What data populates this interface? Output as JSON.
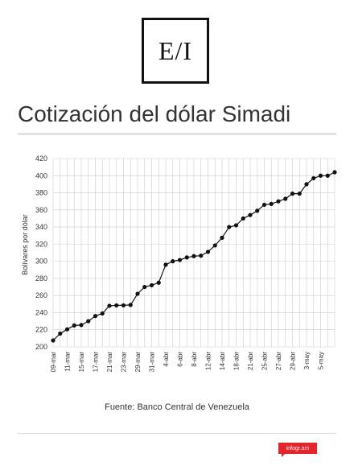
{
  "logo": {
    "text": "E/I"
  },
  "title": "Cotización del dólar Simadi",
  "source": "Fuente: Banco Central de Venezuela",
  "badge": "infogr.am",
  "colors": {
    "line": "#111111",
    "grid": "#cccccc",
    "badge": "#e5252c"
  },
  "chart_data": {
    "type": "line",
    "title": "Cotización del dólar Simadi",
    "xlabel": "",
    "ylabel": "Bolívares por dólar",
    "ylim": [
      200,
      420
    ],
    "yticks": [
      200,
      220,
      240,
      260,
      280,
      300,
      320,
      340,
      360,
      380,
      400,
      420
    ],
    "grid": true,
    "x_tick_labels": [
      "09-mar",
      "11-mar",
      "15-mar",
      "17-mar",
      "21-mar",
      "23-mar",
      "29-mar",
      "31-mar",
      "4-abr",
      "6-abr",
      "8-abr",
      "12-abr",
      "14-abr",
      "18-abr",
      "21-abr",
      "25-abr",
      "27-abr",
      "29-abr",
      "3-may",
      "5-may"
    ],
    "series": [
      {
        "values": [
          207.5,
          215.5,
          220.5,
          225.0,
          225.5,
          230.0,
          236.0,
          239.0,
          248.0,
          248.5,
          248.5,
          249.0,
          262.0,
          270.0,
          272.0,
          275.0,
          296.0,
          300.0,
          301.5,
          304.5,
          306.0,
          306.5,
          311.0,
          318.5,
          327.5,
          340.0,
          342.0,
          350.0,
          354.0,
          359.0,
          366.0,
          367.0,
          370.0,
          373.0,
          379.0,
          379.0,
          390.0,
          397.0,
          400.0,
          400.0,
          404.0
        ]
      }
    ]
  }
}
